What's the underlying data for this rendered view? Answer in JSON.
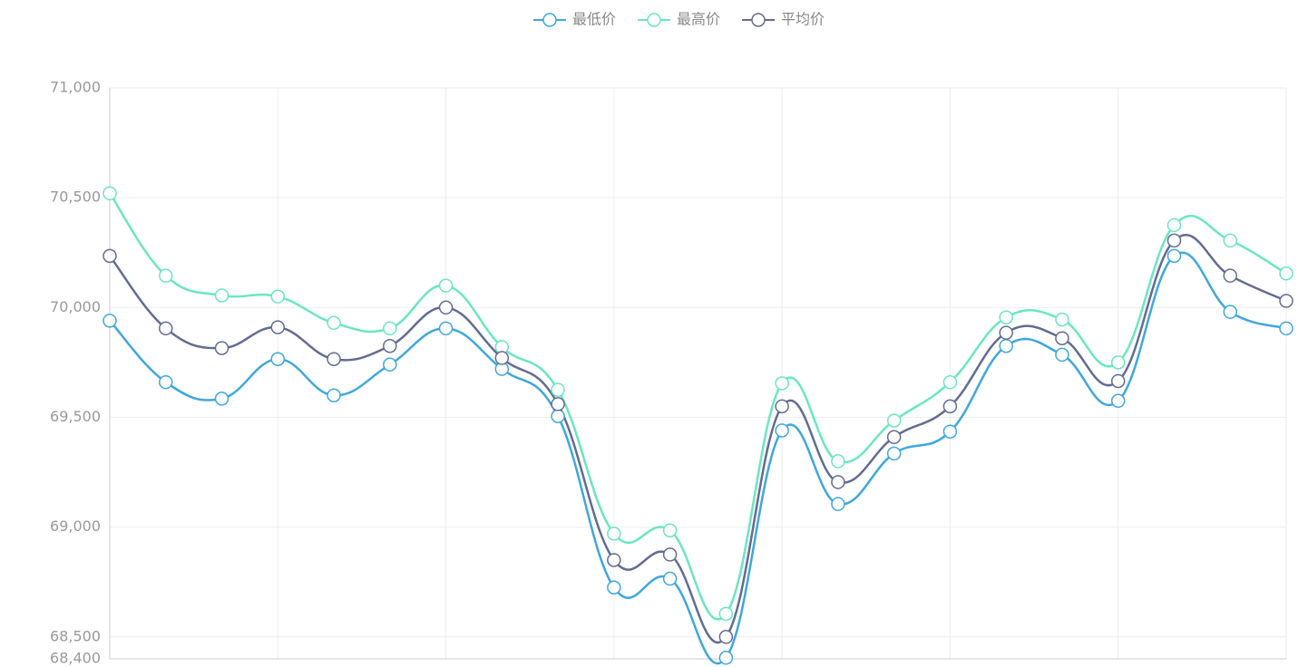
{
  "chart_data": {
    "type": "line",
    "categories": [
      null,
      null,
      null,
      null,
      null,
      null,
      null,
      null,
      null,
      null,
      null,
      null,
      null,
      null,
      null,
      null,
      null,
      null,
      null,
      null,
      null,
      null
    ],
    "series": [
      {
        "name": "最低价",
        "color": "#3fa7dc",
        "values": [
          69940,
          69660,
          69585,
          69765,
          69600,
          69740,
          69905,
          69720,
          69505,
          68725,
          68765,
          68405,
          69440,
          69105,
          69335,
          69435,
          69825,
          69785,
          69575,
          70235,
          69980,
          69905
        ]
      },
      {
        "name": "最高价",
        "color": "#6be6c1",
        "values": [
          70520,
          70145,
          70055,
          70050,
          69930,
          69905,
          70100,
          69820,
          69625,
          68970,
          68985,
          68605,
          69655,
          69300,
          69485,
          69660,
          69955,
          69945,
          69750,
          70375,
          70305,
          70155
        ]
      },
      {
        "name": "平均价",
        "color": "#626c91",
        "values": [
          70235,
          69905,
          69815,
          69910,
          69765,
          69825,
          70000,
          69770,
          69560,
          68850,
          68875,
          68500,
          69550,
          69205,
          69410,
          69550,
          69885,
          69860,
          69665,
          70305,
          70145,
          70030
        ]
      }
    ],
    "ylim": [
      68400,
      71000
    ],
    "yticks": [
      {
        "value": 68400,
        "label": "68,400"
      },
      {
        "value": 68500,
        "label": "68,500"
      },
      {
        "value": 69000,
        "label": "69,000"
      },
      {
        "value": 69500,
        "label": "69,500"
      },
      {
        "value": 70000,
        "label": "70,000"
      },
      {
        "value": 70500,
        "label": "70,500"
      },
      {
        "value": 71000,
        "label": "71,000"
      }
    ],
    "grid": true,
    "legend": "top",
    "smooth": true
  }
}
